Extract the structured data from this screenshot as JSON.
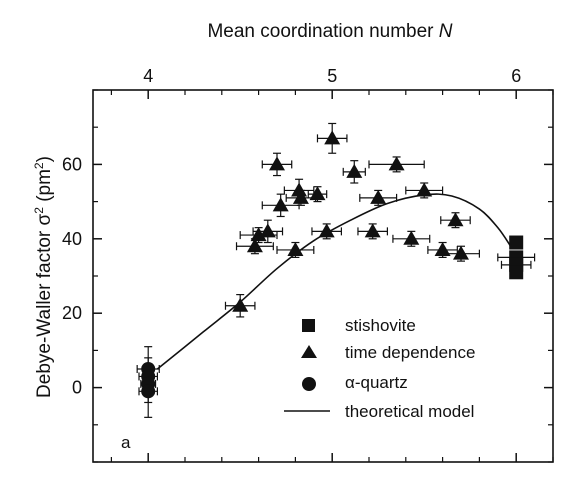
{
  "chart_data": {
    "type": "scatter",
    "panel_label": "a",
    "x_top_label": "Mean coordination number",
    "x_top_label_symbol": "N",
    "y_label_main": "Debye-Waller factor σ",
    "y_label_sup": "2",
    "y_label_unit_open": " (pm",
    "y_label_unit_sup": "2",
    "y_label_unit_close": ")",
    "xlim": [
      3.7,
      6.2
    ],
    "ylim": [
      -20,
      80
    ],
    "x_ticks": [
      4,
      5,
      6
    ],
    "x_tick_labels": [
      "4",
      "5",
      "6"
    ],
    "y_ticks": [
      0,
      20,
      40,
      60
    ],
    "y_tick_labels": [
      "0",
      "20",
      "40",
      "60"
    ],
    "grid": false,
    "legend_position": "bottom-right",
    "colors": {
      "markers": "#111111",
      "line": "#111111",
      "axes": "#111111"
    },
    "series": [
      {
        "name": "stishovite",
        "marker": "square",
        "points": [
          {
            "x": 6.0,
            "y": 39,
            "xerr": 0,
            "yerr": 0
          },
          {
            "x": 6.0,
            "y": 35,
            "xerr": 0.1,
            "yerr": 0
          },
          {
            "x": 6.0,
            "y": 33,
            "xerr": 0.08,
            "yerr": 0
          },
          {
            "x": 6.0,
            "y": 31,
            "xerr": 0,
            "yerr": 0
          }
        ]
      },
      {
        "name": "time dependence",
        "marker": "triangle",
        "points": [
          {
            "x": 4.5,
            "y": 22,
            "xerr": 0.08,
            "yerr": 3
          },
          {
            "x": 4.58,
            "y": 38,
            "xerr": 0.1,
            "yerr": 2
          },
          {
            "x": 4.6,
            "y": 41,
            "xerr": 0.1,
            "yerr": 2
          },
          {
            "x": 4.65,
            "y": 42,
            "xerr": 0.08,
            "yerr": 3
          },
          {
            "x": 4.7,
            "y": 60,
            "xerr": 0.08,
            "yerr": 3
          },
          {
            "x": 4.72,
            "y": 49,
            "xerr": 0.1,
            "yerr": 3
          },
          {
            "x": 4.8,
            "y": 37,
            "xerr": 0.1,
            "yerr": 2
          },
          {
            "x": 4.82,
            "y": 53,
            "xerr": 0.08,
            "yerr": 3
          },
          {
            "x": 4.83,
            "y": 51,
            "xerr": 0.08,
            "yerr": 2
          },
          {
            "x": 4.92,
            "y": 52,
            "xerr": 0.05,
            "yerr": 2
          },
          {
            "x": 4.97,
            "y": 42,
            "xerr": 0.08,
            "yerr": 2
          },
          {
            "x": 5.0,
            "y": 67,
            "xerr": 0.08,
            "yerr": 4
          },
          {
            "x": 5.12,
            "y": 58,
            "xerr": 0.06,
            "yerr": 3
          },
          {
            "x": 5.22,
            "y": 42,
            "xerr": 0.08,
            "yerr": 2
          },
          {
            "x": 5.25,
            "y": 51,
            "xerr": 0.1,
            "yerr": 2
          },
          {
            "x": 5.35,
            "y": 60,
            "xerr": 0.15,
            "yerr": 2
          },
          {
            "x": 5.43,
            "y": 40,
            "xerr": 0.1,
            "yerr": 2
          },
          {
            "x": 5.5,
            "y": 53,
            "xerr": 0.1,
            "yerr": 2
          },
          {
            "x": 5.6,
            "y": 37,
            "xerr": 0.08,
            "yerr": 2
          },
          {
            "x": 5.67,
            "y": 45,
            "xerr": 0.08,
            "yerr": 2
          },
          {
            "x": 5.7,
            "y": 36,
            "xerr": 0.1,
            "yerr": 2
          }
        ]
      },
      {
        "name": "α-quartz",
        "marker": "circle",
        "points": [
          {
            "x": 4.0,
            "y": 5,
            "xerr": 0.06,
            "yerr": 6
          },
          {
            "x": 4.0,
            "y": 3,
            "xerr": 0.05,
            "yerr": 5
          },
          {
            "x": 4.0,
            "y": 1,
            "xerr": 0.04,
            "yerr": 5
          },
          {
            "x": 4.0,
            "y": -1,
            "xerr": 0.05,
            "yerr": 7
          }
        ]
      },
      {
        "name": "theoretical model",
        "marker": "line",
        "points": [
          {
            "x": 4.05,
            "y": 5
          },
          {
            "x": 4.3,
            "y": 15
          },
          {
            "x": 4.5,
            "y": 23
          },
          {
            "x": 4.7,
            "y": 32
          },
          {
            "x": 4.9,
            "y": 39.5
          },
          {
            "x": 5.1,
            "y": 45
          },
          {
            "x": 5.3,
            "y": 49.5
          },
          {
            "x": 5.5,
            "y": 51.8
          },
          {
            "x": 5.65,
            "y": 51.5
          },
          {
            "x": 5.8,
            "y": 48
          },
          {
            "x": 5.9,
            "y": 43
          },
          {
            "x": 5.97,
            "y": 38
          }
        ]
      }
    ]
  }
}
